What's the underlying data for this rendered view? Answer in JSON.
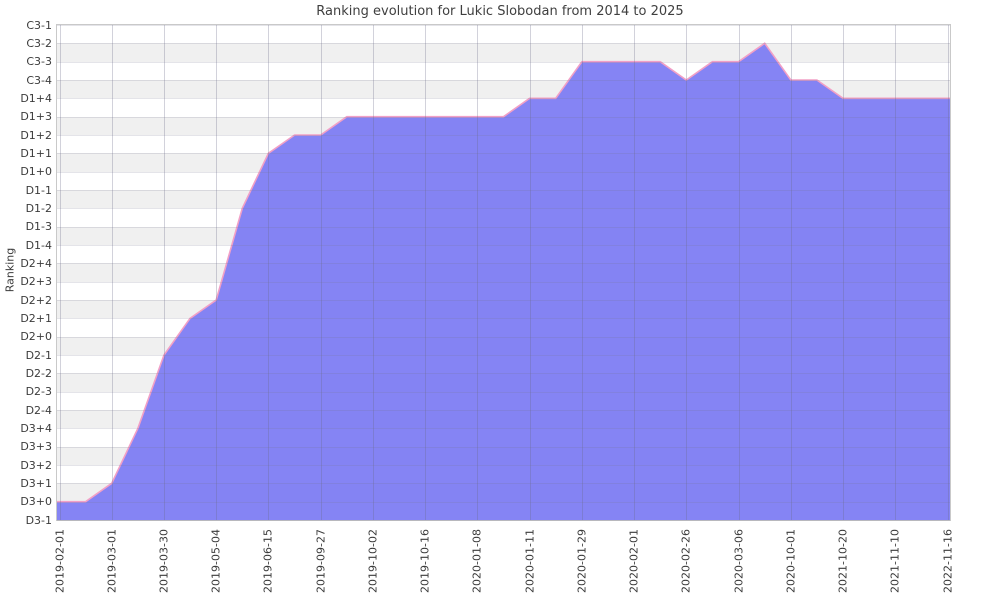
{
  "title": "Ranking evolution for Lukic Slobodan from 2014 to 2025",
  "chart_data": {
    "type": "area",
    "title": "Ranking evolution for Lukic Slobodan from 2014 to 2025",
    "xlabel": "",
    "ylabel": "Ranking",
    "legend": "none",
    "grid": true,
    "band_stripes": true,
    "y_categories_top_to_bottom": [
      "C3-1",
      "C3-2",
      "C3-3",
      "C3-4",
      "D1+4",
      "D1+3",
      "D1+2",
      "D1+1",
      "D1+0",
      "D1-1",
      "D1-2",
      "D1-3",
      "D1-4",
      "D2+4",
      "D2+3",
      "D2+2",
      "D2+1",
      "D2+0",
      "D2-1",
      "D2-2",
      "D2-3",
      "D2-4",
      "D3+4",
      "D3+3",
      "D3+2",
      "D3+1",
      "D3+0",
      "D3-1"
    ],
    "x_tick_labels": [
      "2019-02-01",
      "2019-03-01",
      "2019-03-30",
      "2019-05-04",
      "2019-06-15",
      "2019-09-27",
      "2019-10-02",
      "2019-10-16",
      "2020-01-08",
      "2020-01-11",
      "2020-01-29",
      "2020-02-01",
      "2020-02-26",
      "2020-03-06",
      "2020-10-01",
      "2021-10-20",
      "2021-11-10",
      "2022-11-16"
    ],
    "x_points_per_tick": 2,
    "series": [
      {
        "name": "Ranking",
        "values_by_slot": [
          "D3+0",
          "D3+0",
          "D3+1",
          "D3+4",
          "D2-1",
          "D2+1",
          "D2+2",
          "D1-2",
          "D1+1",
          "D1+2",
          "D1+2",
          "D1+3",
          "D1+3",
          "D1+3",
          "D1+3",
          "D1+3",
          "D1+3",
          "D1+3",
          "D1+4",
          "D1+4",
          "C3-3",
          "C3-3",
          "C3-3",
          "C3-3",
          "C3-4",
          "C3-3",
          "C3-3",
          "C3-2",
          "C3-4",
          "C3-4",
          "D1+4",
          "D1+4",
          "D1+4",
          "D1+4",
          "D1+4"
        ]
      }
    ],
    "values_at_ticks": [
      {
        "date": "2019-02-01",
        "rank": "D3+0"
      },
      {
        "date": "2019-03-01",
        "rank": "D3+1"
      },
      {
        "date": "2019-03-30",
        "rank": "D2-1"
      },
      {
        "date": "2019-05-04",
        "rank": "D2+2"
      },
      {
        "date": "2019-06-15",
        "rank": "D1+1"
      },
      {
        "date": "2019-09-27",
        "rank": "D1+2"
      },
      {
        "date": "2019-10-02",
        "rank": "D1+3"
      },
      {
        "date": "2019-10-16",
        "rank": "D1+3"
      },
      {
        "date": "2020-01-08",
        "rank": "D1+3"
      },
      {
        "date": "2020-01-11",
        "rank": "D1+4"
      },
      {
        "date": "2020-01-29",
        "rank": "C3-3"
      },
      {
        "date": "2020-02-01",
        "rank": "C3-3"
      },
      {
        "date": "2020-02-26",
        "rank": "C3-4"
      },
      {
        "date": "2020-03-06",
        "rank": "C3-3"
      },
      {
        "date": "2020-10-01",
        "rank": "C3-4"
      },
      {
        "date": "2021-10-20",
        "rank": "D1+4"
      },
      {
        "date": "2021-11-10",
        "rank": "D1+4"
      },
      {
        "date": "2022-11-16",
        "rank": "D1+4"
      }
    ],
    "colors": {
      "area_fill": "#7b79f3",
      "line": "#f2a0c6",
      "band_gray": "#f0f0f0",
      "h_grid": "rgba(120,120,145,0.20)",
      "v_grid": "rgba(105,105,135,0.30)",
      "text": "#3b3b3b",
      "plot_border": "#c9c9c9"
    }
  }
}
